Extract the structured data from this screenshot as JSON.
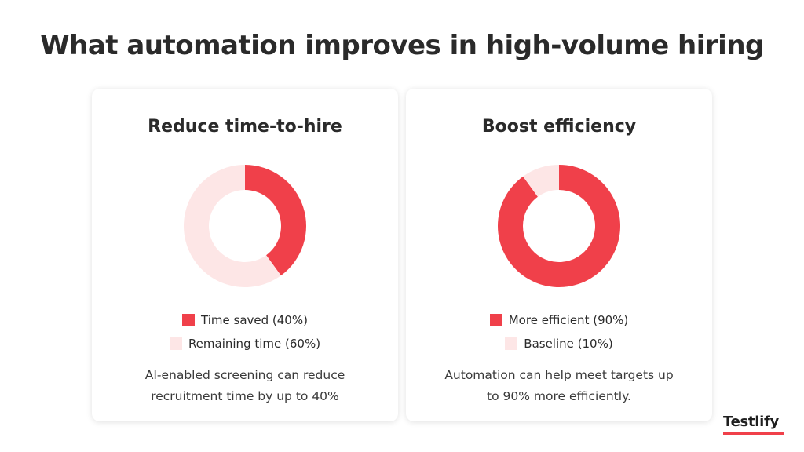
{
  "title": "What automation improves in high-volume hiring",
  "brand": "Testlify",
  "colors": {
    "accent": "#f0404a",
    "light": "#fde6e6"
  },
  "chart_data": [
    {
      "type": "pie",
      "title": "Reduce time-to-hire",
      "slices": [
        {
          "label": "Time saved (40%)",
          "value": 40,
          "color": "#f0404a"
        },
        {
          "label": "Remaining time (60%)",
          "value": 60,
          "color": "#fde6e6"
        }
      ],
      "description": [
        "AI-enabled screening can reduce",
        "recruitment time by up to 40%"
      ]
    },
    {
      "type": "pie",
      "title": "Boost efficiency",
      "slices": [
        {
          "label": "More efficient (90%)",
          "value": 90,
          "color": "#f0404a"
        },
        {
          "label": "Baseline (10%)",
          "value": 10,
          "color": "#fde6e6"
        }
      ],
      "description": [
        "Automation can help meet targets up",
        "to 90% more efficiently."
      ]
    }
  ]
}
